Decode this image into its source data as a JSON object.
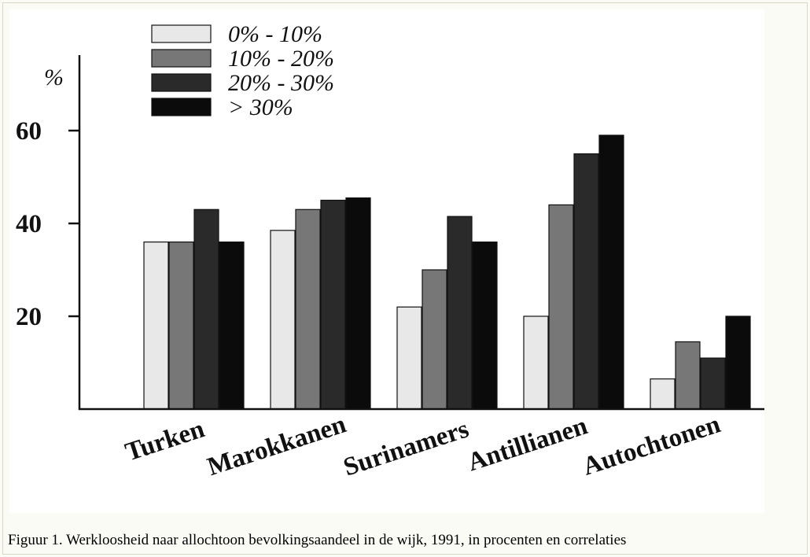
{
  "chart_data": {
    "type": "bar",
    "ylabel": "%",
    "ylim": [
      0,
      70
    ],
    "yticks": [
      20,
      40,
      60
    ],
    "grid": false,
    "legend_position": "top-left",
    "categories": [
      "Turken",
      "Marokkanen",
      "Surinamers",
      "Antillianen",
      "Autochtonen"
    ],
    "series": [
      {
        "name": "0% - 10%",
        "color": "#e8e8e8",
        "values": [
          36,
          38.5,
          22,
          20,
          6.5
        ]
      },
      {
        "name": "10% - 20%",
        "color": "#777777",
        "values": [
          36,
          43,
          30,
          44,
          14.5
        ]
      },
      {
        "name": "20% - 30%",
        "color": "#2a2a2a",
        "values": [
          43,
          45,
          41.5,
          55,
          11
        ]
      },
      {
        "name": "> 30%",
        "color": "#0b0b0b",
        "values": [
          36,
          45.5,
          36,
          59,
          20
        ]
      }
    ]
  },
  "caption": "Figuur 1. Werkloosheid naar allochtoon bevolkingsaandeel in de wijk, 1991, in procenten en correlaties"
}
